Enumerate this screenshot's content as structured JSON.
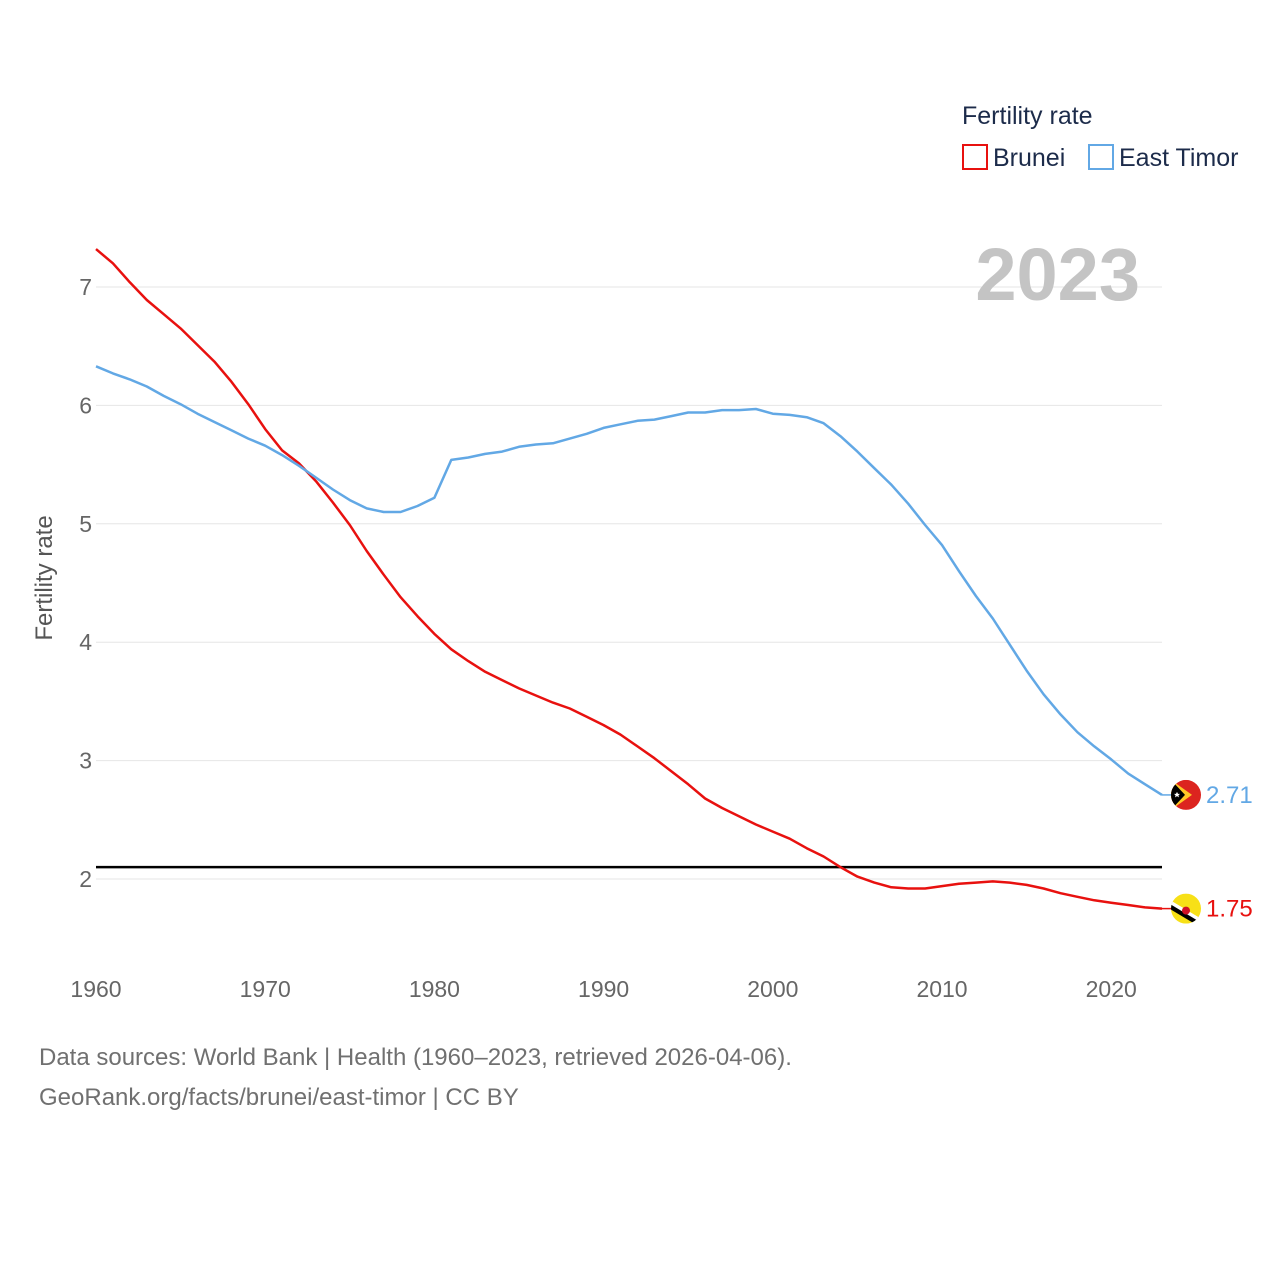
{
  "chart_data": {
    "type": "line",
    "title": "Fertility rate",
    "year_label": "2023",
    "xlabel": "",
    "ylabel": "Fertility rate",
    "xlim": [
      1960,
      2023
    ],
    "ylim": [
      1.2,
      7.5
    ],
    "x_ticks": [
      1960,
      1970,
      1980,
      1990,
      2000,
      2010,
      2020
    ],
    "y_ticks": [
      2,
      3,
      4,
      5,
      6,
      7
    ],
    "reference_line": 2.1,
    "grid": true,
    "legend_position": "top-right",
    "x": [
      1960,
      1961,
      1962,
      1963,
      1964,
      1965,
      1966,
      1967,
      1968,
      1969,
      1970,
      1971,
      1972,
      1973,
      1974,
      1975,
      1976,
      1977,
      1978,
      1979,
      1980,
      1981,
      1982,
      1983,
      1984,
      1985,
      1986,
      1987,
      1988,
      1989,
      1990,
      1991,
      1992,
      1993,
      1994,
      1995,
      1996,
      1997,
      1998,
      1999,
      2000,
      2001,
      2002,
      2003,
      2004,
      2005,
      2006,
      2007,
      2008,
      2009,
      2010,
      2011,
      2012,
      2013,
      2014,
      2015,
      2016,
      2017,
      2018,
      2019,
      2020,
      2021,
      2022,
      2023
    ],
    "series": [
      {
        "name": "Brunei",
        "color": "#e8110f",
        "end_label": "1.75",
        "values": [
          7.32,
          7.2,
          7.04,
          6.89,
          6.77,
          6.65,
          6.51,
          6.37,
          6.2,
          6.01,
          5.8,
          5.62,
          5.51,
          5.36,
          5.18,
          4.99,
          4.77,
          4.57,
          4.38,
          4.22,
          4.07,
          3.94,
          3.84,
          3.75,
          3.68,
          3.61,
          3.55,
          3.49,
          3.44,
          3.37,
          3.3,
          3.22,
          3.12,
          3.02,
          2.91,
          2.8,
          2.68,
          2.6,
          2.53,
          2.46,
          2.4,
          2.34,
          2.26,
          2.19,
          2.1,
          2.02,
          1.97,
          1.93,
          1.92,
          1.92,
          1.94,
          1.96,
          1.97,
          1.98,
          1.97,
          1.95,
          1.92,
          1.88,
          1.85,
          1.82,
          1.8,
          1.78,
          1.76,
          1.75
        ]
      },
      {
        "name": "East Timor",
        "color": "#62a8e5",
        "end_label": "2.71",
        "values": [
          6.33,
          6.27,
          6.22,
          6.16,
          6.08,
          6.01,
          5.93,
          5.86,
          5.79,
          5.72,
          5.66,
          5.58,
          5.49,
          5.39,
          5.29,
          5.2,
          5.13,
          5.1,
          5.1,
          5.15,
          5.22,
          5.54,
          5.56,
          5.59,
          5.61,
          5.65,
          5.67,
          5.68,
          5.72,
          5.76,
          5.81,
          5.84,
          5.87,
          5.88,
          5.91,
          5.94,
          5.94,
          5.96,
          5.96,
          5.97,
          5.93,
          5.92,
          5.9,
          5.85,
          5.74,
          5.61,
          5.47,
          5.33,
          5.17,
          4.99,
          4.82,
          4.6,
          4.39,
          4.2,
          3.98,
          3.76,
          3.56,
          3.39,
          3.24,
          3.12,
          3.01,
          2.89,
          2.8,
          2.71
        ]
      }
    ]
  },
  "footer": {
    "line1": "Data sources: World Bank | Health (1960–2023, retrieved 2026-04-06).",
    "line2": "GeoRank.org/facts/brunei/east-timor | CC BY"
  }
}
